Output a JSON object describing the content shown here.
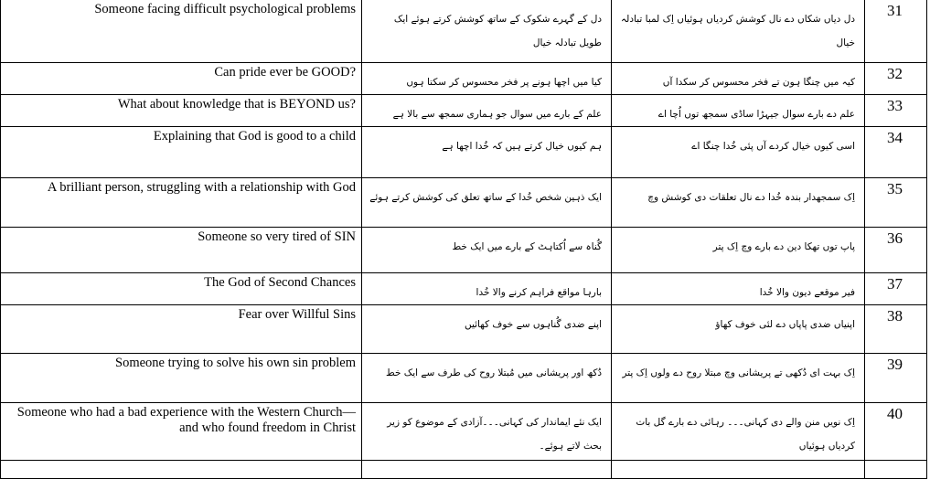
{
  "rows": [
    {
      "num": "31",
      "english": "Someone facing difficult psychological problems",
      "urdu": "دل کے گہرے شکوک کے ساتھ کوشش کرتے ہوئے ایک طویل تبادلہ خیال",
      "punjabi": "دل دیاں شکاں دے نال کوشش کردیاں ہوئیاں اِک لمبا تبادلہ خیال"
    },
    {
      "num": "32",
      "english": "Can pride ever be GOOD?",
      "urdu": "کیا میں اچھا ہونے پر فخر محسوس کر سکتا ہوں",
      "punjabi": "کیہ میں چنگا ہون تے فخر محسوس کر سکدا آں"
    },
    {
      "num": "33",
      "english": "What about knowledge that is BEYOND us?",
      "urdu": "علم کے بارے میں سوال جو ہماری سمجھ سے بالا ہے",
      "punjabi": "علم دے بارے سوال جیہڑا ساڈی سمجھ توں اُچا اے"
    },
    {
      "num": "34",
      "english": "Explaining that God is good to a child",
      "urdu": "ہم کیوں خیال کرتے ہیں کہ خُدا اچھا ہے",
      "punjabi": "اسی کیوں خیال کردے آں پئی خُدا چنگا اے"
    },
    {
      "num": "35",
      "english": "A brilliant person, struggling with a relationship with God",
      "urdu": "ایک ذہین شخص خُدا کے ساتھ تعلق کی کوشش کرتے ہوئے",
      "punjabi": "اِک سمجھدار بندہ خُدا دے نال تعلقات دی کوشش وچ"
    },
    {
      "num": "36",
      "english": "Someone so very tired of SIN",
      "urdu": "گُناہ سے اُکتاہٹ کے بارے میں ایک خط",
      "punjabi": "پاپ توں تھکا دین دے بارے وچ اِک پتر"
    },
    {
      "num": "37",
      "english": "The God of Second Chances",
      "urdu": "بارہا مواقع فراہم کرنے والا خُدا",
      "punjabi": "فیر موقعے دیون والا خُدا"
    },
    {
      "num": "38",
      "english": "Fear over Willful Sins",
      "urdu": "اپنے ضدی گُناہوں سے خوف کھائیں",
      "punjabi": "اپنیاں ضدی پاپاں دے لئی خوف کھاؤ"
    },
    {
      "num": "39",
      "english": "Someone trying to solve his own sin problem",
      "urdu": "دُکھ اور پریشانی میں مُبتلا روح کی طرف سے ایک خط",
      "punjabi": "اِک بہت ای دُکھی تے پریشانی وچ مبتلا روح دے ولوں اِک پتر"
    },
    {
      "num": "40",
      "english": "Someone who had a bad experience with the Western Church—and who found freedom in Christ",
      "urdu": "ایک نئے ایماندار کی کہانی۔۔۔آزادی کے موضوع کو زیر بحث لاتے ہوئے۔",
      "punjabi": "اِک نویں منن والے دی کہانی۔۔۔ رہائی دے بارے گل بات کردیاں ہوئیاں"
    }
  ]
}
